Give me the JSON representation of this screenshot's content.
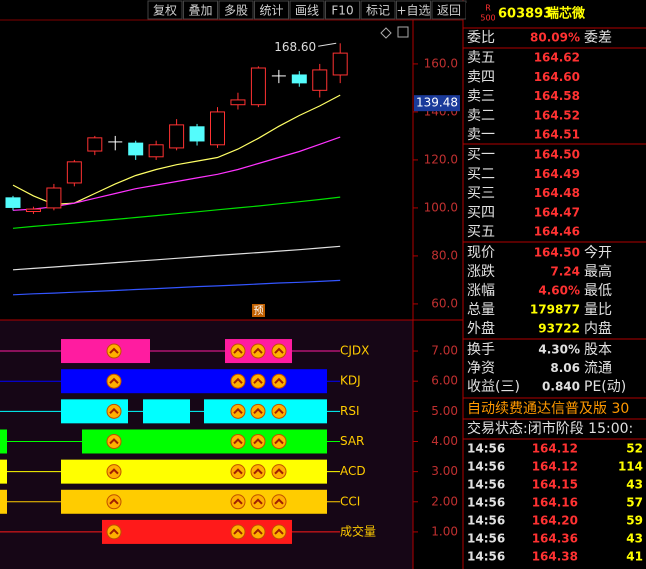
{
  "toolbar": [
    "复权",
    "叠加",
    "多股",
    "统计",
    "画线",
    "F10",
    "标记",
    "+自选",
    "返回"
  ],
  "stock": {
    "badge_top": "R",
    "badge_bottom": "500",
    "code": "603893",
    "name": "瑞芯微"
  },
  "chart_data": [
    {
      "type": "candlestick",
      "ylim": [
        53.3,
        178.3
      ],
      "yticks": [
        {
          "value": 160,
          "label": "160.0"
        },
        {
          "value": 140,
          "label": "140.0"
        },
        {
          "value": 120,
          "label": "120.0"
        },
        {
          "value": 100,
          "label": "100.0"
        },
        {
          "value": 80,
          "label": "80.0"
        },
        {
          "value": 60,
          "label": "60.0"
        }
      ],
      "candles": [
        {
          "open": 104.2,
          "high": 105,
          "low": 99,
          "close": 100.2
        },
        {
          "open": 98.5,
          "high": 100.5,
          "low": 97.5,
          "close": 99.5
        },
        {
          "open": 100,
          "high": 110,
          "low": 99,
          "close": 108.3
        },
        {
          "open": 110.4,
          "high": 120,
          "low": 109,
          "close": 119.2
        },
        {
          "open": 123.7,
          "high": 130,
          "low": 122,
          "close": 129.2
        },
        {
          "open": 127.5,
          "high": 130,
          "low": 124,
          "close": 127.5
        },
        {
          "open": 127,
          "high": 128,
          "low": 120,
          "close": 122.1
        },
        {
          "open": 121.3,
          "high": 128,
          "low": 120,
          "close": 126.3
        },
        {
          "open": 125,
          "high": 137,
          "low": 124,
          "close": 134.6
        },
        {
          "open": 133.8,
          "high": 135,
          "low": 126,
          "close": 127.9
        },
        {
          "open": 126.3,
          "high": 142,
          "low": 125,
          "close": 140
        },
        {
          "open": 143,
          "high": 148,
          "low": 141,
          "close": 145
        },
        {
          "open": 143,
          "high": 159,
          "low": 142,
          "close": 158.3
        },
        {
          "open": 155,
          "high": 157.5,
          "low": 152,
          "close": 155
        },
        {
          "open": 155.4,
          "high": 157,
          "low": 150.5,
          "close": 152.1
        },
        {
          "open": 149,
          "high": 160,
          "low": 146,
          "close": 157.5
        },
        {
          "open": 155.4,
          "high": 168.6,
          "low": 152,
          "close": 164.5
        }
      ],
      "ma_lines": [
        {
          "color": "#ffff66",
          "values": [
            109.5,
            105,
            101.5,
            102,
            106,
            110,
            113.5,
            116,
            118,
            119.5,
            121,
            124.5,
            129,
            134,
            138.5,
            142.5,
            147
          ]
        },
        {
          "color": "#ff33ff",
          "values": [
            99,
            99.5,
            100.5,
            102,
            104,
            106,
            108,
            109.5,
            111,
            112.5,
            114,
            116,
            118.5,
            121,
            123.5,
            126.5,
            129.5
          ]
        },
        {
          "color": "#00e000",
          "values": [
            91.5,
            92.3,
            93,
            93.7,
            94.5,
            95.2,
            96,
            96.8,
            97.6,
            98.4,
            99.2,
            100,
            100.8,
            101.7,
            102.6,
            103.5,
            104.5
          ]
        },
        {
          "color": "#e0e0e0",
          "values": [
            74.2,
            74.8,
            75.4,
            76,
            76.6,
            77.2,
            77.8,
            78.4,
            79,
            79.6,
            80.2,
            80.8,
            81.4,
            82,
            82.6,
            83.3,
            84
          ]
        },
        {
          "color": "#3355ff",
          "values": [
            63.8,
            64.2,
            64.5,
            64.9,
            65.2,
            65.6,
            66,
            66.4,
            66.8,
            67.2,
            67.5,
            67.9,
            68.3,
            68.7,
            69,
            69.4,
            69.8
          ]
        }
      ],
      "high_label": {
        "value": 168.6,
        "label": "168.60"
      },
      "cursor_label": 139.48,
      "marker": "预"
    },
    {
      "type": "signal",
      "ylim": [
        -0.23,
        8.03
      ],
      "yticks": [
        {
          "value": 7,
          "label": "7.00"
        },
        {
          "value": 6,
          "label": "6.00"
        },
        {
          "value": 5,
          "label": "5.00"
        },
        {
          "value": 4,
          "label": "4.00"
        },
        {
          "value": 3,
          "label": "3.00"
        },
        {
          "value": 2,
          "label": "2.00"
        },
        {
          "value": 1,
          "label": "1.00"
        }
      ],
      "rows": [
        {
          "name": "CJDX",
          "value": 7,
          "color": "#ff1ca0"
        },
        {
          "name": "KDJ",
          "value": 6,
          "color": "#0000ff"
        },
        {
          "name": "RSI",
          "value": 5,
          "color": "#00ffff"
        },
        {
          "name": "SAR",
          "value": 4,
          "color": "#00ff00"
        },
        {
          "name": "ACD",
          "value": 3,
          "color": "#ffff00"
        },
        {
          "name": "CCI",
          "value": 2,
          "color": "#ffcc00"
        },
        {
          "name": "成交量",
          "value": 1,
          "color": "#ff1a1a"
        }
      ]
    }
  ],
  "quote": {
    "ratio": {
      "label": "委比",
      "value": "80.09%",
      "label2": "委差"
    },
    "sells": [
      {
        "label": "卖五",
        "price": "164.62"
      },
      {
        "label": "卖四",
        "price": "164.60"
      },
      {
        "label": "卖三",
        "price": "164.58"
      },
      {
        "label": "卖二",
        "price": "164.52"
      },
      {
        "label": "卖一",
        "price": "164.51"
      }
    ],
    "buys": [
      {
        "label": "买一",
        "price": "164.50"
      },
      {
        "label": "买二",
        "price": "164.49"
      },
      {
        "label": "买三",
        "price": "164.48"
      },
      {
        "label": "买四",
        "price": "164.47"
      },
      {
        "label": "买五",
        "price": "164.46"
      }
    ],
    "stats": [
      {
        "label": "现价",
        "value": "164.50",
        "label2": "今开"
      },
      {
        "label": "涨跌",
        "value": "7.24",
        "label2": "最高"
      },
      {
        "label": "涨幅",
        "value": "4.60%",
        "label2": "最低"
      },
      {
        "label": "总量",
        "value": "179877",
        "label2": "量比"
      },
      {
        "label": "外盘",
        "value": "93722",
        "label2": "内盘"
      }
    ],
    "finance": [
      {
        "label": "换手",
        "value": "4.30%",
        "label2": "股本"
      },
      {
        "label": "净资",
        "value": "8.06",
        "label2": "流通"
      },
      {
        "label": "收益(三)",
        "value": "0.840",
        "label2": "PE(动)"
      }
    ],
    "notice": "自动续费通达信普及版 30",
    "status": "交易状态:闭市阶段 15:00:",
    "ticks": [
      [
        "14:56",
        "164.12",
        "52"
      ],
      [
        "14:56",
        "164.12",
        "114"
      ],
      [
        "14:56",
        "164.15",
        "43"
      ],
      [
        "14:56",
        "164.16",
        "57"
      ],
      [
        "14:56",
        "164.20",
        "59"
      ],
      [
        "14:56",
        "164.36",
        "43"
      ],
      [
        "14:56",
        "164.38",
        "41"
      ]
    ]
  }
}
